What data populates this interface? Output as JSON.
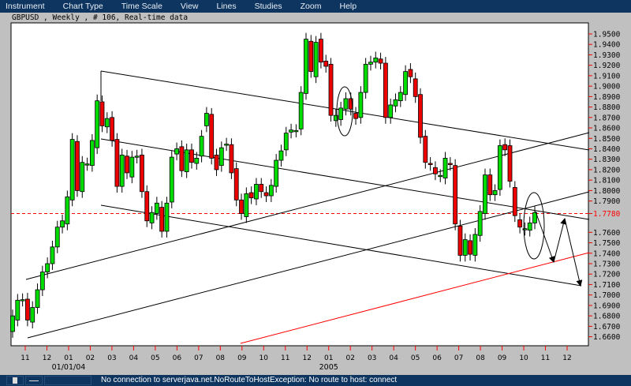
{
  "menu": [
    "Instrument",
    "Chart Type",
    "Time Scale",
    "View",
    "Lines",
    "Studies",
    "Zoom",
    "Help"
  ],
  "chart_title": "GBPUSD , Weekly , # 106, Real-time data",
  "status_message": "No connection to serverjava.net.NoRouteToHostException: No route to host: connect",
  "colors": {
    "up": "#00dd00",
    "down": "#ee0000",
    "menubar": "#0e3560",
    "reference_line": "#ff0000",
    "trendline": "#000000",
    "support_line": "#ff0000"
  },
  "chart_data": {
    "type": "candlestick",
    "symbol": "GBPUSD",
    "timeframe": "Weekly",
    "bars": 106,
    "ylim": [
      1.655,
      1.961
    ],
    "y_ticks": [
      1.95,
      1.94,
      1.93,
      1.92,
      1.91,
      1.9,
      1.89,
      1.88,
      1.87,
      1.86,
      1.85,
      1.84,
      1.83,
      1.82,
      1.81,
      1.8,
      1.79,
      1.76,
      1.75,
      1.74,
      1.73,
      1.72,
      1.71,
      1.7,
      1.69,
      1.68,
      1.67,
      1.66
    ],
    "reference_level": {
      "value": 1.778,
      "label": "1.7780"
    },
    "x_ticks": [
      "11",
      "12",
      "01",
      "02",
      "03",
      "04",
      "05",
      "06",
      "07",
      "08",
      "09",
      "10",
      "11",
      "12",
      "01",
      "02",
      "03",
      "04",
      "05",
      "06",
      "07",
      "08",
      "09",
      "10",
      "11",
      "12"
    ],
    "x_year_labels": [
      {
        "tick_index": 2,
        "label": "01/01/04"
      },
      {
        "tick_index": 14,
        "label": "2005"
      }
    ],
    "open_close": [
      [
        1.665,
        1.68
      ],
      [
        1.676,
        1.695
      ],
      [
        1.695,
        1.6955
      ],
      [
        1.696,
        1.676
      ],
      [
        1.674,
        1.688
      ],
      [
        1.688,
        1.705
      ],
      [
        1.705,
        1.722
      ],
      [
        1.722,
        1.73
      ],
      [
        1.73,
        1.746
      ],
      [
        1.746,
        1.765
      ],
      [
        1.765,
        1.771
      ],
      [
        1.768,
        1.794
      ],
      [
        1.791,
        1.849
      ],
      [
        1.847,
        1.8
      ],
      [
        1.799,
        1.827
      ],
      [
        1.825,
        1.8255
      ],
      [
        1.824,
        1.848
      ],
      [
        1.841,
        1.886
      ],
      [
        1.885,
        1.862
      ],
      [
        1.861,
        1.869
      ],
      [
        1.87,
        1.848
      ],
      [
        1.849,
        1.804
      ],
      [
        1.804,
        1.834
      ],
      [
        1.833,
        1.817
      ],
      [
        1.813,
        1.832
      ],
      [
        1.832,
        1.833
      ],
      [
        1.834,
        1.799
      ],
      [
        1.799,
        1.771
      ],
      [
        1.769,
        1.779
      ],
      [
        1.778,
        1.788
      ],
      [
        1.784,
        1.761
      ],
      [
        1.761,
        1.788
      ],
      [
        1.789,
        1.832
      ],
      [
        1.835,
        1.84
      ],
      [
        1.842,
        1.819
      ],
      [
        1.818,
        1.839
      ],
      [
        1.839,
        1.827
      ],
      [
        1.826,
        1.831
      ],
      [
        1.833,
        1.852
      ],
      [
        1.862,
        1.874
      ],
      [
        1.873,
        1.831
      ],
      [
        1.834,
        1.82
      ],
      [
        1.824,
        1.841
      ],
      [
        1.844,
        1.8445
      ],
      [
        1.844,
        1.817
      ],
      [
        1.821,
        1.791
      ],
      [
        1.791,
        1.778
      ],
      [
        1.775,
        1.797
      ],
      [
        1.798,
        1.793
      ],
      [
        1.792,
        1.806
      ],
      [
        1.806,
        1.799
      ],
      [
        1.798,
        1.795
      ],
      [
        1.795,
        1.805
      ],
      [
        1.804,
        1.829
      ],
      [
        1.829,
        1.838
      ],
      [
        1.839,
        1.855
      ],
      [
        1.856,
        1.858
      ],
      [
        1.857,
        1.8575
      ],
      [
        1.859,
        1.894
      ],
      [
        1.893,
        1.945
      ],
      [
        1.943,
        1.914
      ],
      [
        1.909,
        1.942
      ],
      [
        1.945,
        1.923
      ],
      [
        1.924,
        1.919
      ],
      [
        1.921,
        1.872
      ],
      [
        1.867,
        1.872
      ],
      [
        1.868,
        1.879
      ],
      [
        1.878,
        1.888
      ],
      [
        1.888,
        1.878
      ],
      [
        1.874,
        1.869
      ],
      [
        1.87,
        1.894
      ],
      [
        1.894,
        1.921
      ],
      [
        1.921,
        1.923
      ],
      [
        1.923,
        1.927
      ],
      [
        1.926,
        1.922
      ],
      [
        1.922,
        1.87
      ],
      [
        1.87,
        1.882
      ],
      [
        1.881,
        1.887
      ],
      [
        1.886,
        1.894
      ],
      [
        1.892,
        1.914
      ],
      [
        1.916,
        1.909
      ],
      [
        1.907,
        1.89
      ],
      [
        1.892,
        1.851
      ],
      [
        1.852,
        1.827
      ],
      [
        1.826,
        1.825
      ],
      [
        1.822,
        1.816
      ],
      [
        1.814,
        1.8145
      ],
      [
        1.812,
        1.831
      ],
      [
        1.826,
        1.825
      ],
      [
        1.824,
        1.768
      ],
      [
        1.766,
        1.738
      ],
      [
        1.738,
        1.753
      ],
      [
        1.752,
        1.739
      ],
      [
        1.738,
        1.758
      ],
      [
        1.757,
        1.78
      ],
      [
        1.778,
        1.815
      ],
      [
        1.815,
        1.796
      ],
      [
        1.796,
        1.8
      ],
      [
        1.801,
        1.843
      ],
      [
        1.844,
        1.839
      ],
      [
        1.843,
        1.809
      ],
      [
        1.803,
        1.776
      ],
      [
        1.772,
        1.765
      ],
      [
        1.763,
        1.7635
      ],
      [
        1.762,
        1.769
      ],
      [
        1.769,
        1.779
      ]
    ]
  }
}
